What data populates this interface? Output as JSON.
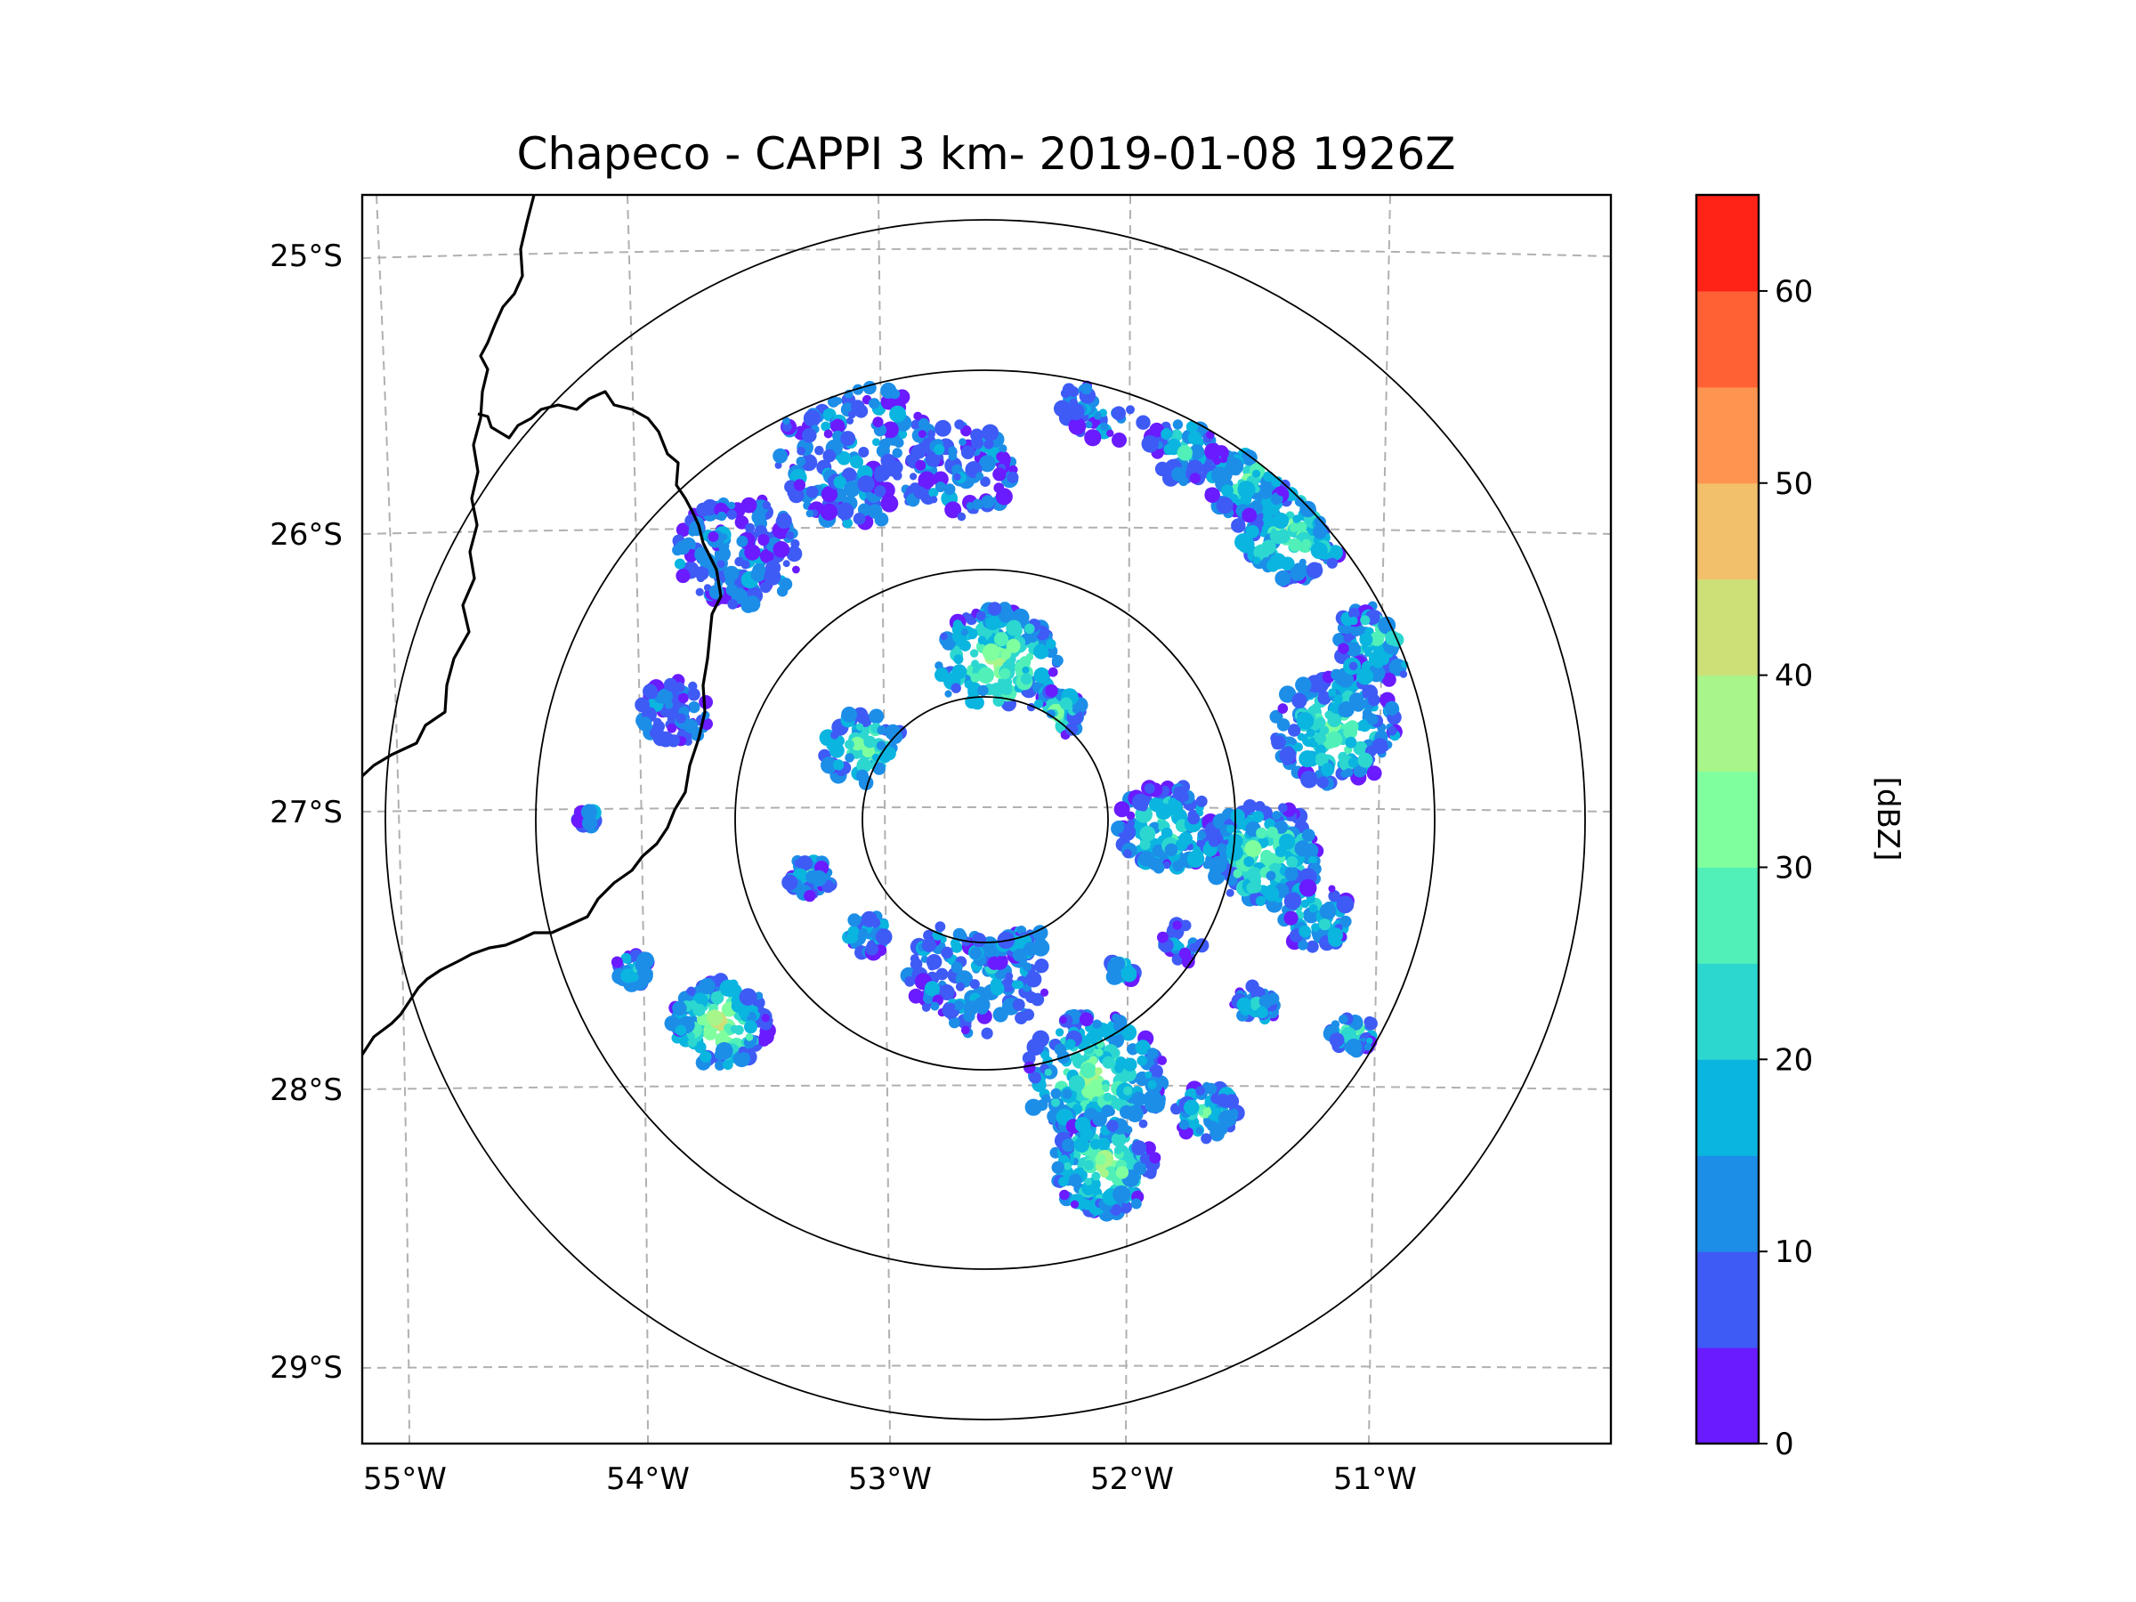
{
  "title": "Chapeco - CAPPI 3 km- 2019-01-08 1926Z",
  "map": {
    "lat_labels": [
      "25°S",
      "26°S",
      "27°S",
      "28°S",
      "29°S"
    ],
    "lon_labels": [
      "55°W",
      "54°W",
      "53°W",
      "52°W",
      "51°W"
    ],
    "radar_center": {
      "lon": -52.6,
      "lat": -27.05
    },
    "range_rings_count": 4,
    "lat_range": [
      -29.3,
      -24.8
    ],
    "lon_range": [
      -55.2,
      -50.0
    ]
  },
  "colorbar": {
    "label": "[dBZ]",
    "tick_labels": [
      "0",
      "10",
      "20",
      "30",
      "40",
      "50",
      "60"
    ],
    "levels": [
      0,
      5,
      10,
      15,
      20,
      25,
      30,
      35,
      40,
      45,
      50,
      55,
      60,
      65
    ],
    "colors": [
      "#6a1bff",
      "#3e5bf6",
      "#1c8ee8",
      "#0ab5e0",
      "#2cd7d0",
      "#50f0b8",
      "#80ff9f",
      "#a8f58a",
      "#cde078",
      "#f2c06a",
      "#fd9450",
      "#ff6034",
      "#ff2216"
    ]
  },
  "colors": {
    "grid": "#b0b0b0",
    "coast": "#000000",
    "ring": "#000000"
  }
}
